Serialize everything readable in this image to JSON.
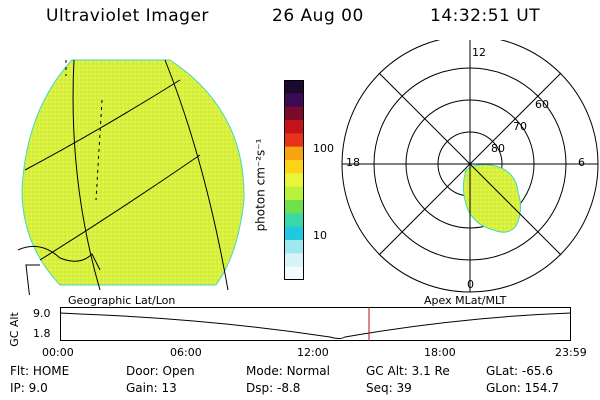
{
  "header": {
    "instrument": "Ultraviolet Imager",
    "date": "26 Aug 00",
    "time": "14:32:51 UT"
  },
  "colorbar": {
    "unit_label": "photon cm⁻²s⁻¹",
    "ticks": [
      "100",
      "10"
    ],
    "scale": "log",
    "colors": [
      "#1a0a2e",
      "#3b0a55",
      "#7a0a2a",
      "#c4121a",
      "#e8321c",
      "#f7a312",
      "#ffd21a",
      "#e8f53a",
      "#b8f23a",
      "#6fe04a",
      "#38d9a8",
      "#22c8e0",
      "#9fe8f0",
      "#d8f4f8",
      "#f2fbfd"
    ]
  },
  "polar": {
    "latitude_labels": [
      "80",
      "70",
      "60"
    ],
    "mlt_labels": {
      "top": "12",
      "left": "18",
      "right": "6",
      "bottom": "0"
    }
  },
  "timeline": {
    "left_caption": "Geographic Lat/Lon",
    "right_caption": "Apex MLat/MLT",
    "axis_label": "GC Alt",
    "y_ticks": [
      "9.0",
      "1.8"
    ],
    "x_ticks": [
      "00:00",
      "06:00",
      "12:00",
      "18:00",
      "23:59"
    ],
    "current_time_fraction": 0.605
  },
  "status": {
    "col1": [
      {
        "label": "Flt:",
        "value": "HOME"
      },
      {
        "label": "IP:",
        "value": "9.0"
      }
    ],
    "col2": [
      {
        "label": "Door:",
        "value": "Open"
      },
      {
        "label": "Gain:",
        "value": "13"
      }
    ],
    "col3": [
      {
        "label": "Mode:",
        "value": "Normal"
      },
      {
        "label": "Dsp:",
        "value": "-8.8"
      }
    ],
    "col4": [
      {
        "label": "GC Alt:",
        "value": "3.1 Re"
      },
      {
        "label": "Seq:",
        "value": "39"
      }
    ],
    "col5": [
      {
        "label": "GLat:",
        "value": "-65.6"
      },
      {
        "label": "GLon:",
        "value": "154.7"
      }
    ]
  },
  "colors": {
    "auroral_fill": "#d6f23a",
    "auroral_edge": "#42d8c0",
    "marker": "#b01010"
  }
}
